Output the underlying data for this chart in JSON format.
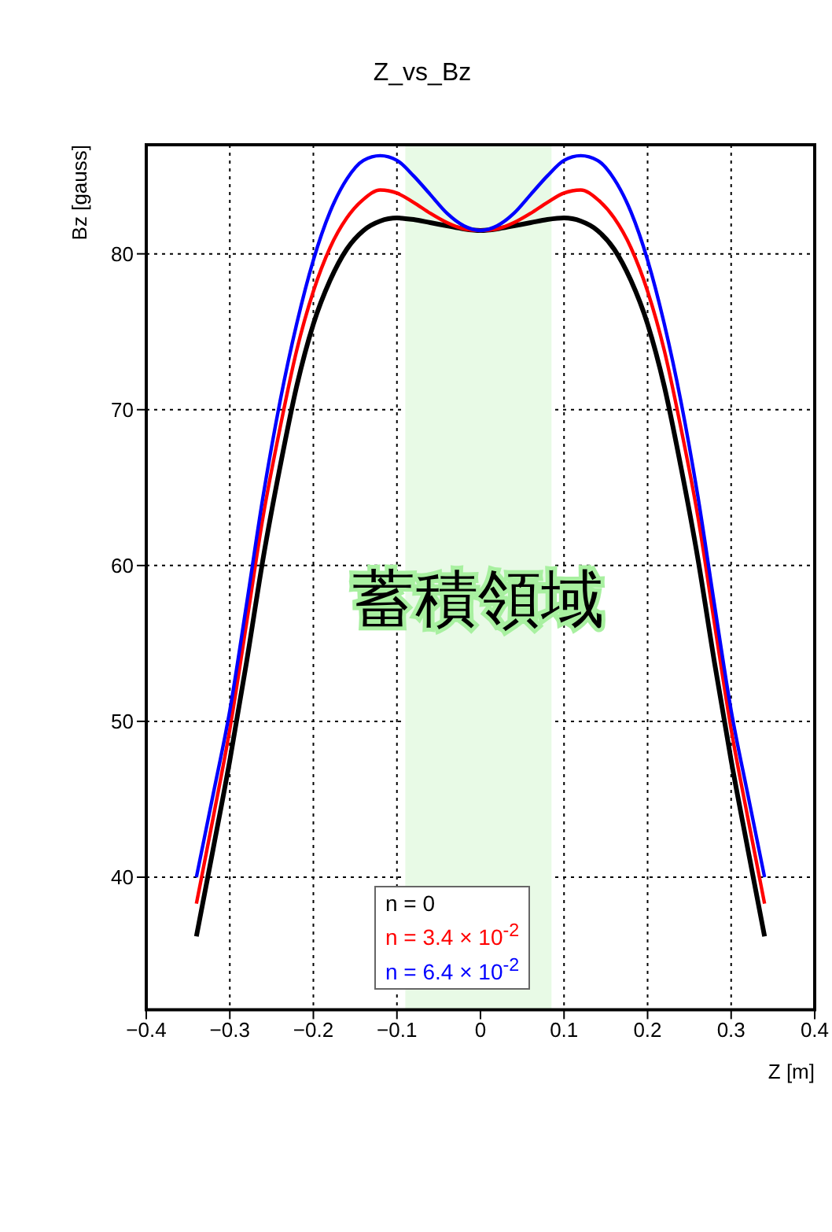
{
  "chart_data": {
    "type": "line",
    "title": "Z_vs_Bz",
    "xlabel": "Z [m]",
    "ylabel": "Bz [gauss]",
    "x": [
      -0.34,
      -0.32,
      -0.3,
      -0.28,
      -0.26,
      -0.24,
      -0.22,
      -0.2,
      -0.18,
      -0.16,
      -0.14,
      -0.12,
      -0.1,
      -0.08,
      -0.06,
      -0.04,
      -0.02,
      0,
      0.02,
      0.04,
      0.06,
      0.08,
      0.1,
      0.12,
      0.14,
      0.16,
      0.18,
      0.2,
      0.22,
      0.24,
      0.26,
      0.28,
      0.3,
      0.32,
      0.34
    ],
    "series": [
      {
        "name": "n = 0",
        "color": "#000000",
        "values": [
          36.2,
          41.8,
          47.5,
          53.8,
          60.5,
          66.3,
          71.5,
          75.5,
          78.3,
          80.3,
          81.5,
          82.1,
          82.3,
          82.2,
          82.0,
          81.8,
          81.6,
          81.5,
          81.6,
          81.8,
          82.0,
          82.2,
          82.3,
          82.1,
          81.5,
          80.3,
          78.3,
          75.5,
          71.5,
          66.3,
          60.5,
          53.8,
          47.5,
          41.8,
          36.2
        ]
      },
      {
        "name": "n = 3.4 × 10$^{-2}$",
        "color": "#ff0000",
        "values": [
          38.3,
          43.8,
          49.5,
          56.3,
          63.2,
          68.8,
          73.8,
          77.6,
          80.4,
          82.3,
          83.5,
          84.1,
          83.9,
          83.3,
          82.6,
          82.0,
          81.6,
          81.5,
          81.6,
          82.0,
          82.6,
          83.3,
          83.9,
          84.1,
          83.5,
          82.3,
          80.4,
          77.6,
          73.8,
          68.8,
          63.2,
          56.3,
          49.5,
          43.8,
          38.3
        ]
      },
      {
        "name": "n = 6.4 × 10$^{-2}$",
        "color": "#0000ff",
        "values": [
          40.0,
          45.3,
          50.7,
          57.5,
          64.5,
          70.5,
          75.5,
          79.6,
          82.7,
          84.8,
          86.0,
          86.3,
          86.0,
          85.0,
          83.8,
          82.6,
          81.8,
          81.5,
          81.8,
          82.6,
          83.8,
          85.0,
          86.0,
          86.3,
          86.0,
          84.8,
          82.7,
          79.6,
          75.5,
          70.5,
          64.5,
          57.5,
          50.7,
          45.3,
          40.0
        ]
      }
    ],
    "xlim": [
      -0.4,
      0.4
    ],
    "xticks": [
      -0.4,
      -0.3,
      -0.2,
      -0.1,
      0,
      0.1,
      0.2,
      0.3,
      0.4
    ],
    "ylim": [
      31.5,
      87
    ],
    "yticks": [
      40,
      50,
      60,
      70,
      80
    ],
    "bands": [
      {
        "axis": "x",
        "from": -0.09,
        "to": 0.085,
        "label": "蓄積領域",
        "color": "#e8fae6"
      }
    ],
    "grid": true,
    "legend": "bottom",
    "line_style": "solid",
    "marker": "none"
  }
}
